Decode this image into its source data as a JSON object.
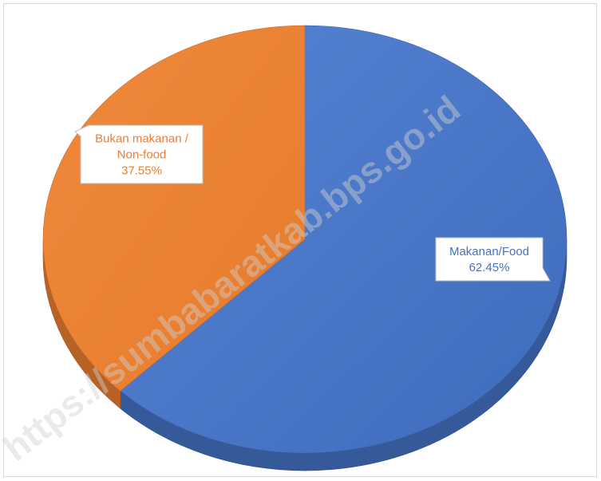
{
  "chart_data": {
    "type": "pie",
    "title": "",
    "categories": [
      "Makanan/Food",
      "Bukan makanan / Non-food"
    ],
    "values": [
      62.45,
      37.55
    ],
    "colors": [
      "#4472C4",
      "#ED7D31"
    ],
    "data_labels": [
      {
        "lines": [
          "Makanan/Food",
          "62.45%"
        ]
      },
      {
        "lines": [
          "Bukan makanan /",
          "Non-food",
          "37.55%"
        ]
      }
    ],
    "style": "3d"
  },
  "watermark": "https://sumbabaratkab.bps.go.id"
}
